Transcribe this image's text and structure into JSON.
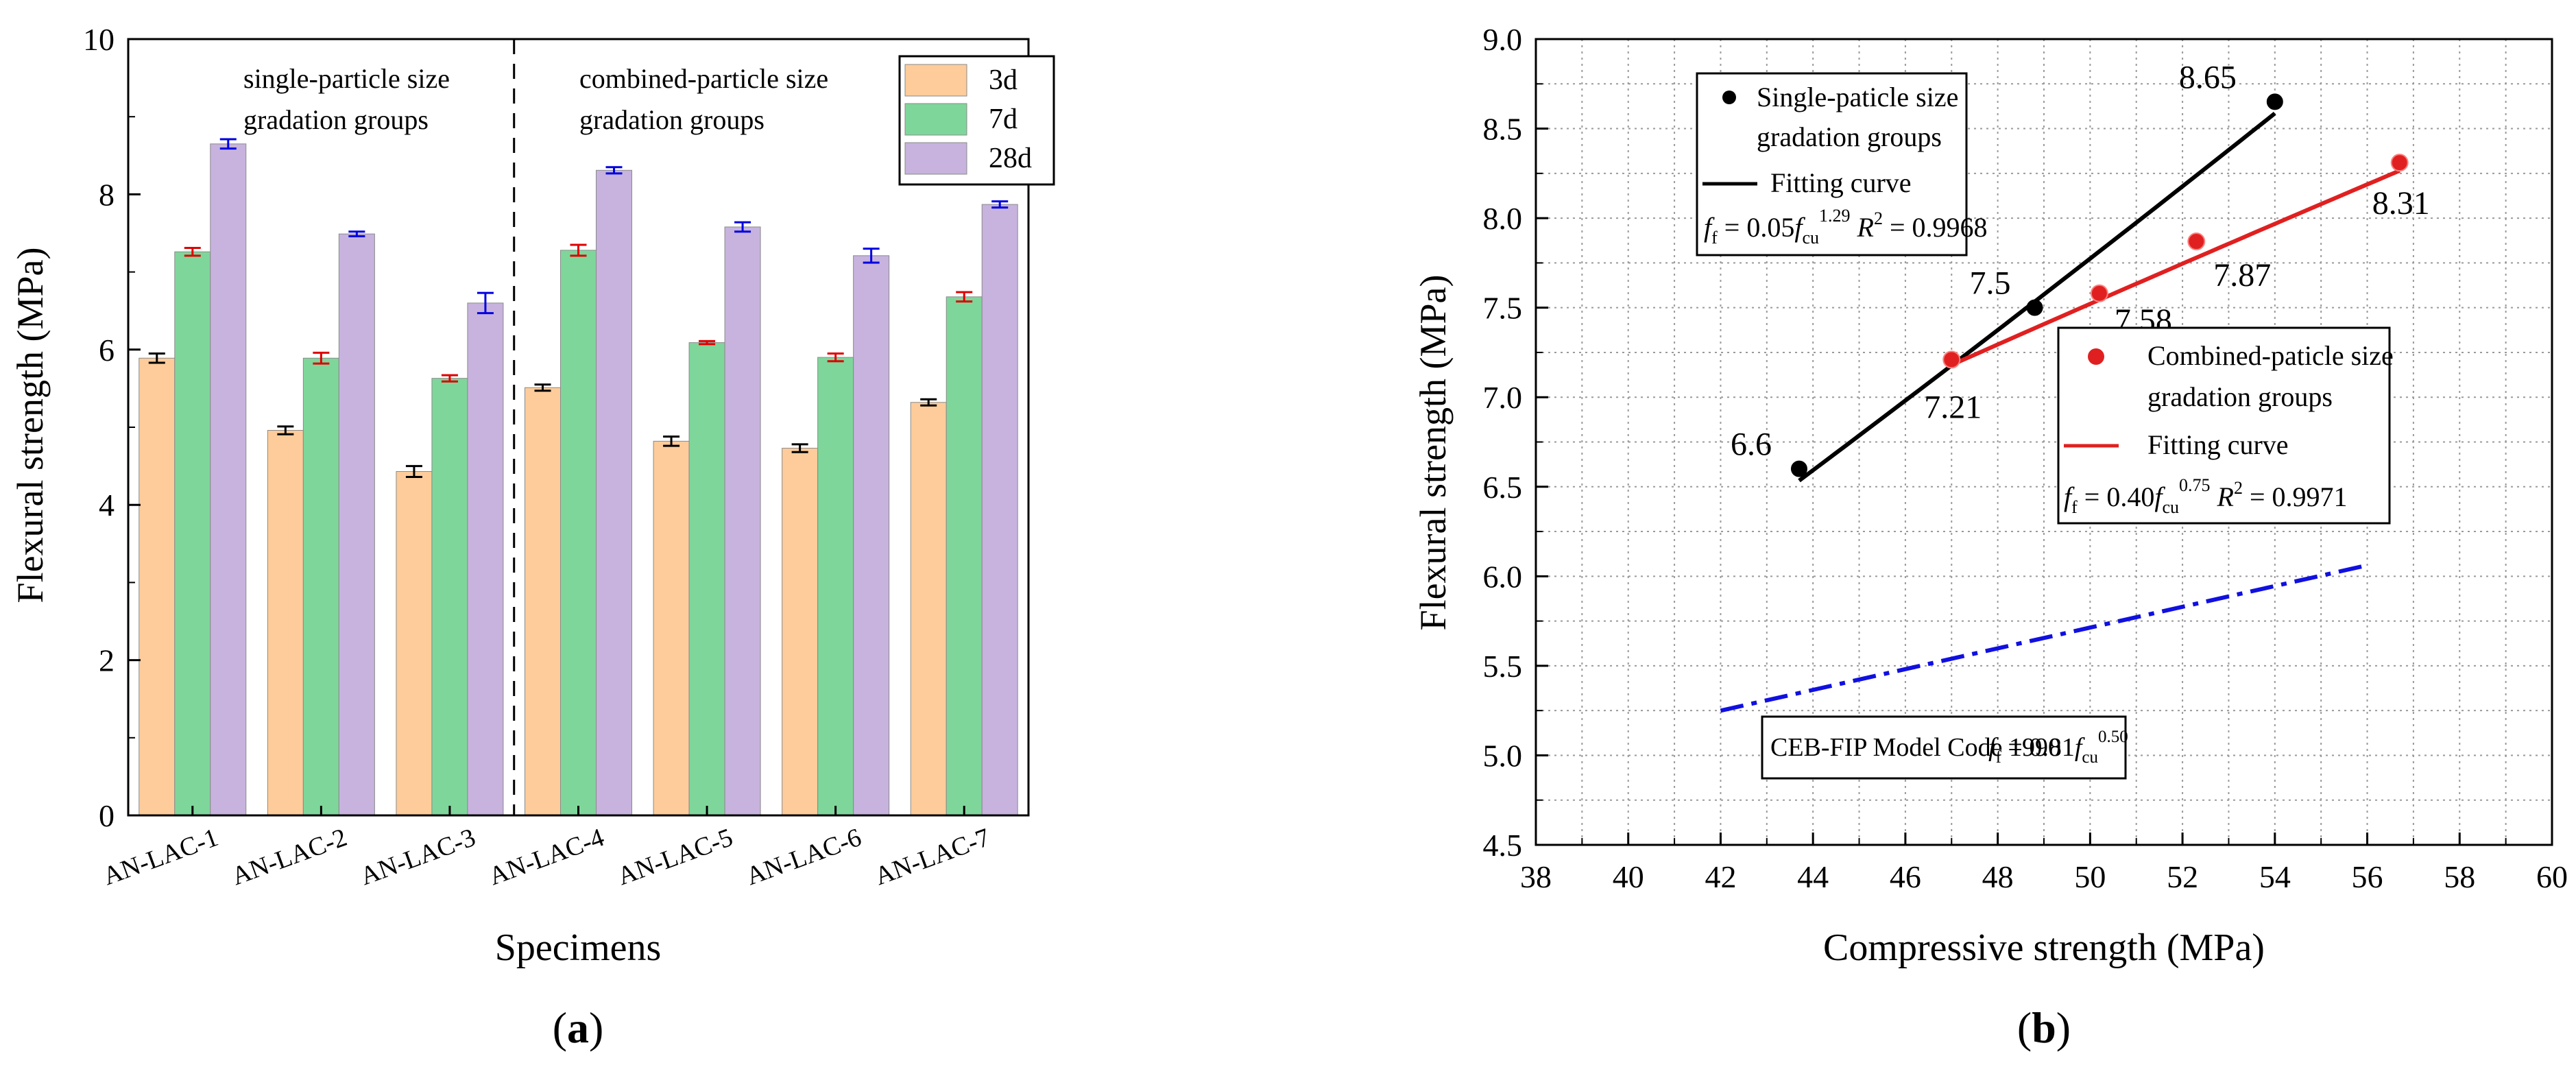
{
  "chart_data": [
    {
      "type": "bar",
      "panel_label": "a",
      "xlabel": "Specimens",
      "ylabel": "Flexural strength (MPa)",
      "ylim": [
        0,
        10
      ],
      "yticks": [
        "0",
        "2",
        "4",
        "6",
        "8",
        "10"
      ],
      "categories": [
        "AN-LAC-1",
        "AN-LAC-2",
        "AN-LAC-3",
        "AN-LAC-4",
        "AN-LAC-5",
        "AN-LAC-6",
        "AN-LAC-7"
      ],
      "series": [
        {
          "name": "3d",
          "color": "#FDCC9A",
          "errcolor": "#000000",
          "values": [
            5.89,
            4.96,
            4.43,
            5.51,
            4.82,
            4.73,
            5.32
          ],
          "errors": [
            0.06,
            0.05,
            0.07,
            0.04,
            0.06,
            0.05,
            0.04
          ]
        },
        {
          "name": "7d",
          "color": "#7FD69B",
          "errcolor": "#E00000",
          "values": [
            7.26,
            5.89,
            5.63,
            7.28,
            6.09,
            5.9,
            6.68
          ],
          "errors": [
            0.05,
            0.07,
            0.04,
            0.07,
            0.02,
            0.05,
            0.06
          ]
        },
        {
          "name": "28d",
          "color": "#C7B3DE",
          "errcolor": "#0000E0",
          "values": [
            8.65,
            7.49,
            6.6,
            8.31,
            7.58,
            7.21,
            7.87
          ],
          "errors": [
            0.06,
            0.03,
            0.13,
            0.04,
            0.06,
            0.09,
            0.04
          ]
        }
      ],
      "annotations": {
        "group1": [
          "single-particle size",
          "gradation groups"
        ],
        "group2": [
          "combined-particle size",
          "gradation groups"
        ]
      },
      "legend_position": "top-right"
    },
    {
      "type": "scatter",
      "panel_label": "b",
      "xlabel": "Compressive strength (MPa)",
      "ylabel": "Flexural strength (MPa)",
      "xlim": [
        38,
        60
      ],
      "ylim": [
        4.5,
        9.0
      ],
      "xticks": [
        "38",
        "40",
        "42",
        "44",
        "46",
        "48",
        "50",
        "52",
        "54",
        "56",
        "58",
        "60"
      ],
      "yticks": [
        "4.5",
        "5.0",
        "5.5",
        "6.0",
        "6.5",
        "7.0",
        "7.5",
        "8.0",
        "8.5",
        "9.0"
      ],
      "series": [
        {
          "name": "Single-paticle size gradation groups",
          "color": "#000000",
          "points": [
            [
              43.7,
              6.6
            ],
            [
              48.8,
              7.5
            ],
            [
              54.0,
              8.65
            ]
          ],
          "labels": [
            "6.6",
            "7.5",
            "8.65"
          ],
          "fit": {
            "label": "Fitting curve",
            "a": 0.05,
            "b": 1.29,
            "r2": "0.9968",
            "x": [
              43.7,
              54.0
            ]
          }
        },
        {
          "name": "Combined-paticle size gradation groups",
          "color": "#E02020",
          "points": [
            [
              47.0,
              7.21
            ],
            [
              50.2,
              7.58
            ],
            [
              52.3,
              7.87
            ],
            [
              56.7,
              8.31
            ]
          ],
          "labels": [
            "7.21",
            "7.58",
            "7.87",
            "8.31"
          ],
          "fit": {
            "label": "Fitting curve",
            "a": 0.4,
            "b": 0.75,
            "r2": "0.9971",
            "x": [
              47.0,
              56.7
            ]
          }
        }
      ],
      "reference": {
        "name": "CEB-FIP Model Code 1990",
        "a": 0.81,
        "b": 0.5,
        "x": [
          42,
          56
        ],
        "color": "#1010E0"
      },
      "legend1": {
        "line1": "Single-paticle size",
        "line2": "gradation groups",
        "fit": "Fitting curve",
        "eq": "0.05",
        "exp": "1.29",
        "r2": "0.9968"
      },
      "legend2": {
        "line1": "Combined-paticle size",
        "line2": "gradation groups",
        "fit": "Fitting curve",
        "eq": "0.40",
        "exp": "0.75",
        "r2": "0.9971"
      },
      "ref_box": {
        "name": "CEB-FIP Model Code 1990",
        "eq": "0.81",
        "exp": "0.50"
      }
    }
  ]
}
